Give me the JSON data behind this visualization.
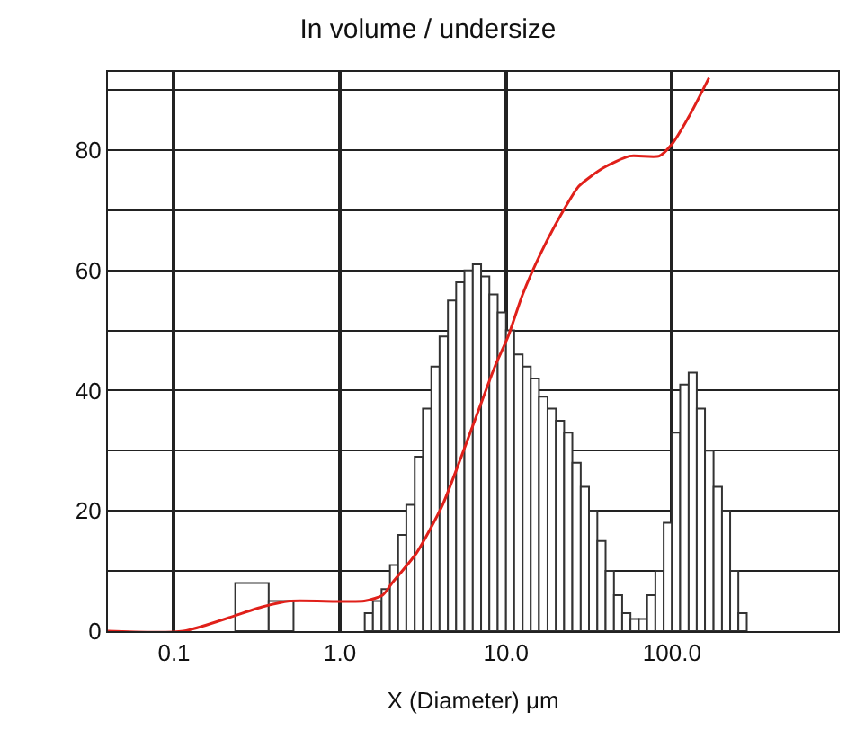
{
  "chart_data": {
    "type": "histogram",
    "title": "In volume / undersize",
    "xlabel": "X (Diameter) μm",
    "bins": [
      0.234,
      0.372,
      0.525,
      1.41,
      1.58,
      1.78,
      2.0,
      2.24,
      2.51,
      2.82,
      3.16,
      3.55,
      3.98,
      4.47,
      5.01,
      5.62,
      6.31,
      7.08,
      7.94,
      8.91,
      10.0,
      11.2,
      12.6,
      14.1,
      15.8,
      17.8,
      20.0,
      22.4,
      25.1,
      28.2,
      31.6,
      35.5,
      39.8,
      44.7,
      50.1,
      56.2,
      63.1,
      70.8,
      79.4,
      89.1,
      100,
      112,
      126,
      141,
      158,
      178,
      200,
      224,
      251,
      282
    ],
    "values": [
      8,
      5,
      0,
      3,
      5,
      7,
      11,
      16,
      21,
      29,
      37,
      44,
      49,
      55,
      58,
      60,
      61,
      59,
      56,
      53,
      50,
      46,
      44,
      42,
      39,
      37,
      35,
      33,
      28,
      24,
      20,
      15,
      10,
      6,
      3,
      2,
      2,
      6,
      10,
      18,
      33,
      41,
      43,
      37,
      30,
      24,
      20,
      10,
      3
    ],
    "color": "#ffffff",
    "series": [
      {
        "type": "line",
        "color": "#e0201a",
        "x": [
          0.04,
          0.114,
          0.337,
          0.497,
          1.4,
          1.81,
          2.06,
          2.89,
          4.15,
          6.28,
          8.57,
          10.3,
          12.6,
          16.3,
          21.2,
          27.5,
          38.3,
          55.5,
          83.6,
          100,
          129,
          167
        ],
        "values": [
          0,
          0,
          4,
          5,
          5,
          6,
          8,
          13,
          21,
          34,
          44,
          49,
          56,
          63,
          69,
          74,
          77,
          79,
          79,
          81,
          86,
          92
        ]
      }
    ],
    "log": "x",
    "xlim": [
      0.04,
      1000
    ],
    "xticks": [
      {
        "value": 0.1,
        "label": "0.1"
      },
      {
        "value": 1,
        "label": "1.0"
      },
      {
        "value": 10,
        "label": "10.0"
      },
      {
        "value": 100,
        "label": "100.0"
      }
    ],
    "ylim": [
      0,
      93
    ],
    "yticks": [
      0,
      {
        "value": 10,
        "label": null
      },
      20,
      {
        "value": 30,
        "label": null
      },
      40,
      {
        "value": 50,
        "label": null
      },
      60,
      {
        "value": 70,
        "label": null
      },
      80,
      {
        "value": 90,
        "label": null
      }
    ],
    "grid": true,
    "marker": "none",
    "line_style": "solid"
  }
}
